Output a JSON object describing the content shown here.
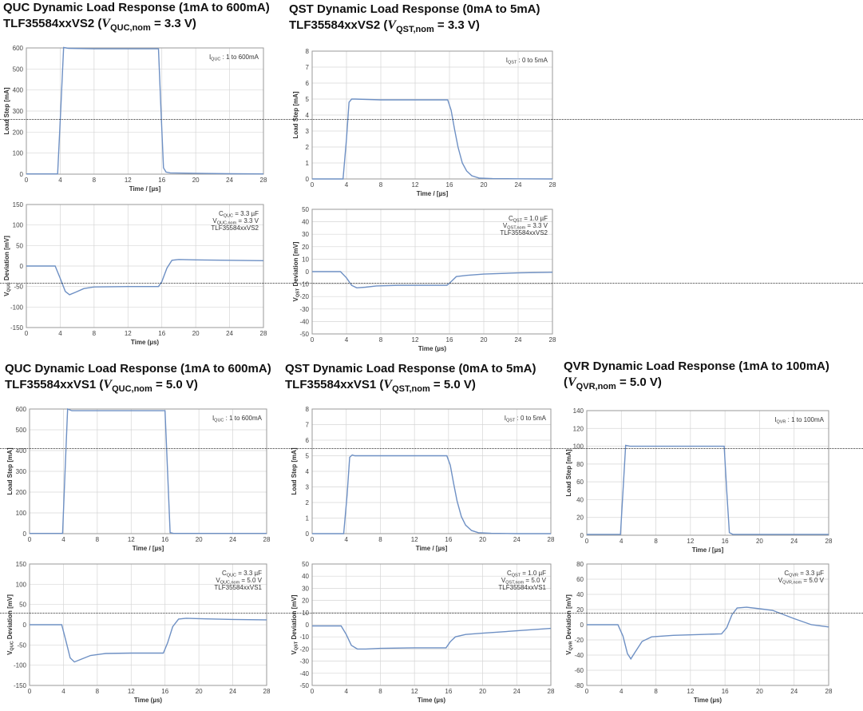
{
  "groups": [
    {
      "id": "quc-vs2",
      "title_line1": "QUC Dynamic Load Response (1mA to 600mA)",
      "title_line2_prefix": "TLF35584xxVS2 (",
      "title_var": "V",
      "title_var_sub": "QUC,nom",
      "title_line2_suffix": " = 3.3 V)"
    },
    {
      "id": "qst-vs2",
      "title_line1": "QST Dynamic Load Response (0mA to 5mA)",
      "title_line2_prefix": "TLF35584xxVS2 (",
      "title_var": "V",
      "title_var_sub": "QST,nom",
      "title_line2_suffix": " = 3.3 V)"
    },
    {
      "id": "quc-vs1",
      "title_line1": "QUC Dynamic Load Response (1mA to 600mA)",
      "title_line2_prefix": "TLF35584xxVS1 (",
      "title_var": "V",
      "title_var_sub": "QUC,nom",
      "title_line2_suffix": " = 5.0 V)"
    },
    {
      "id": "qst-vs1",
      "title_line1": "QST Dynamic Load Response (0mA to 5mA)",
      "title_line2_prefix": "TLF35584xxVS1 (",
      "title_var": "V",
      "title_var_sub": "QST,nom",
      "title_line2_suffix": " = 5.0 V)"
    },
    {
      "id": "qvr",
      "title_line1": "QVR Dynamic Load Response (1mA to 100mA)",
      "title_line2_prefix": "(",
      "title_var": "V",
      "title_var_sub": "QVR,nom",
      "title_line2_suffix": " = 5.0 V)"
    }
  ],
  "chart_data": [
    {
      "id": "quc-vs2-load",
      "type": "line",
      "xlabel": "Time / [µs]",
      "ylabel": "Load Step  [mA]",
      "xlim": [
        0,
        28
      ],
      "ylim": [
        0,
        600
      ],
      "xticks": [
        0,
        4,
        8,
        12,
        16,
        20,
        24,
        28
      ],
      "yticks": [
        0,
        100,
        200,
        300,
        400,
        500,
        600
      ],
      "grid": true,
      "annotation": [
        "I|QUC| : 1 to 600mA"
      ],
      "series": [
        {
          "x": [
            0,
            3.7,
            4.05,
            4.4,
            5,
            8,
            12,
            15.6,
            15.9,
            16.2,
            16.5,
            17,
            20,
            24,
            28
          ],
          "y": [
            1,
            1,
            300,
            602,
            598,
            596,
            596,
            596,
            300,
            30,
            10,
            6,
            4,
            2,
            1
          ]
        }
      ]
    },
    {
      "id": "quc-vs2-dev",
      "type": "line",
      "xlabel": "Time (µs)",
      "ylabel": "V|QUC| Deviation  [mV]",
      "xlim": [
        0,
        28
      ],
      "ylim": [
        -150,
        150
      ],
      "xticks": [
        0,
        4,
        8,
        12,
        16,
        20,
        24,
        28
      ],
      "yticks": [
        -150,
        -100,
        -50,
        0,
        50,
        100,
        150
      ],
      "grid": true,
      "annotation": [
        "C|QUC| = 3.3 µF",
        "V|QUC,nom| = 3.3 V",
        "TLF35584xxVS2"
      ],
      "series": [
        {
          "x": [
            0,
            3.4,
            4,
            4.6,
            5.1,
            5.8,
            6.8,
            8,
            12,
            15.6,
            16,
            16.6,
            17.2,
            18,
            20,
            24,
            28
          ],
          "y": [
            0,
            0,
            -30,
            -62,
            -70,
            -64,
            -55,
            -51,
            -50,
            -50,
            -38,
            -5,
            14,
            16,
            15,
            14,
            13
          ]
        }
      ]
    },
    {
      "id": "qst-vs2-load",
      "type": "line",
      "xlabel": "Time / [µs]",
      "ylabel": "Load Step  [mA]",
      "xlim": [
        0,
        28
      ],
      "ylim": [
        0,
        8
      ],
      "xticks": [
        0,
        4,
        8,
        12,
        16,
        20,
        24,
        28
      ],
      "yticks": [
        0,
        1,
        2,
        3,
        4,
        5,
        6,
        7,
        8
      ],
      "grid": true,
      "annotation": [
        "I|QST| : 0 to 5mA"
      ],
      "series": [
        {
          "x": [
            0,
            3.6,
            4,
            4.3,
            4.6,
            5,
            8,
            12,
            15.8,
            16.2,
            16.6,
            17,
            17.5,
            18,
            18.6,
            19.5,
            21,
            24,
            28
          ],
          "y": [
            0,
            0,
            2.5,
            4.8,
            5,
            5,
            4.95,
            4.95,
            4.95,
            4.3,
            3.1,
            2,
            1,
            0.5,
            0.2,
            0.05,
            0.02,
            0.01,
            0
          ]
        }
      ]
    },
    {
      "id": "qst-vs2-dev",
      "type": "line",
      "xlabel": "Time (µs)",
      "ylabel": "V|QST| Deviation  [mV]",
      "xlim": [
        0,
        28
      ],
      "ylim": [
        -50,
        50
      ],
      "xticks": [
        0,
        4,
        8,
        12,
        16,
        20,
        24,
        28
      ],
      "yticks": [
        -50,
        -40,
        -30,
        -20,
        -10,
        0,
        10,
        20,
        30,
        40,
        50
      ],
      "grid": true,
      "annotation": [
        "C|QST| = 1.0 µF",
        "V|QST,nom| = 3.3 V",
        "TLF35584xxVS2"
      ],
      "series": [
        {
          "x": [
            0,
            3.3,
            4,
            4.6,
            5.2,
            6.2,
            7.5,
            10,
            13,
            15.7,
            16.2,
            16.8,
            18,
            20,
            24,
            28
          ],
          "y": [
            0,
            0,
            -5,
            -11,
            -13,
            -12.5,
            -11.5,
            -11,
            -11,
            -11,
            -8,
            -4,
            -3,
            -2,
            -1,
            -0.5
          ]
        }
      ]
    },
    {
      "id": "quc-vs1-load",
      "type": "line",
      "xlabel": "Time / [µs]",
      "ylabel": "Load Step  [mA]",
      "xlim": [
        0,
        28
      ],
      "ylim": [
        0,
        600
      ],
      "xticks": [
        0,
        4,
        8,
        12,
        16,
        20,
        24,
        28
      ],
      "yticks": [
        0,
        100,
        200,
        300,
        400,
        500,
        600
      ],
      "grid": true,
      "annotation": [
        "I|QUC| : 1 to 600mA"
      ],
      "series": [
        {
          "x": [
            0,
            3.9,
            4.2,
            4.5,
            5,
            8,
            12,
            16,
            16.3,
            16.6,
            17,
            20,
            24,
            28
          ],
          "y": [
            1,
            1,
            300,
            600,
            592,
            592,
            592,
            592,
            300,
            5,
            1,
            1,
            1,
            1
          ]
        }
      ]
    },
    {
      "id": "quc-vs1-dev",
      "type": "line",
      "xlabel": "Time (µs)",
      "ylabel": "V|QUC| Deviation  [mV]",
      "xlim": [
        0,
        28
      ],
      "ylim": [
        -150,
        150
      ],
      "xticks": [
        0,
        4,
        8,
        12,
        16,
        20,
        24,
        28
      ],
      "yticks": [
        -150,
        -100,
        -50,
        0,
        50,
        100,
        150
      ],
      "grid": true,
      "annotation": [
        "C|QUC| = 3.3 µF",
        "V|QUC,nom| = 5.0 V",
        "TLF35584xxVS1"
      ],
      "series": [
        {
          "x": [
            0,
            3.8,
            4.3,
            4.8,
            5.3,
            6,
            7.2,
            9,
            12,
            15.8,
            16.3,
            16.9,
            17.6,
            18.5,
            20,
            24,
            28
          ],
          "y": [
            0,
            0,
            -40,
            -82,
            -92,
            -86,
            -76,
            -71,
            -70,
            -70,
            -45,
            -5,
            14,
            16,
            15,
            13,
            12
          ]
        }
      ]
    },
    {
      "id": "qst-vs1-load",
      "type": "line",
      "xlabel": "Time / [µs]",
      "ylabel": "Load Step  [mA]",
      "xlim": [
        0,
        28
      ],
      "ylim": [
        0,
        8
      ],
      "xticks": [
        0,
        4,
        8,
        12,
        16,
        20,
        24,
        28
      ],
      "yticks": [
        0,
        1,
        2,
        3,
        4,
        5,
        6,
        7,
        8
      ],
      "grid": true,
      "annotation": [
        "I|QST| : 0 to 5mA"
      ],
      "series": [
        {
          "x": [
            0,
            3.7,
            4.1,
            4.4,
            4.7,
            5,
            8,
            12,
            15.8,
            16.2,
            16.6,
            17,
            17.5,
            18,
            18.7,
            19.5,
            21,
            24,
            28
          ],
          "y": [
            0,
            0,
            2.5,
            4.9,
            5.05,
            5,
            5,
            5,
            5,
            4.4,
            3.2,
            2.1,
            1.1,
            0.55,
            0.2,
            0.06,
            0.02,
            0,
            0
          ]
        }
      ]
    },
    {
      "id": "qst-vs1-dev",
      "type": "line",
      "xlabel": "Time (µs)",
      "ylabel": "V|QST| Deviation  [mV]",
      "xlim": [
        0,
        28
      ],
      "ylim": [
        -50,
        50
      ],
      "xticks": [
        0,
        4,
        8,
        12,
        16,
        20,
        24,
        28
      ],
      "yticks": [
        -50,
        -40,
        -30,
        -20,
        -10,
        0,
        10,
        20,
        30,
        40,
        50
      ],
      "grid": true,
      "annotation": [
        "C|QST| = 1.0 µF",
        "V|QST,nom| = 5.0 V",
        "TLF35584xxVS1"
      ],
      "series": [
        {
          "x": [
            0,
            3.4,
            4,
            4.6,
            5.3,
            6.3,
            8,
            12,
            15.7,
            16.2,
            16.8,
            18,
            20,
            24,
            28
          ],
          "y": [
            -1,
            -1,
            -8,
            -17,
            -20,
            -20,
            -19.5,
            -19,
            -19,
            -14,
            -10,
            -8,
            -7,
            -5,
            -3
          ]
        }
      ]
    },
    {
      "id": "qvr-load",
      "type": "line",
      "xlabel": "Time / [µs]",
      "ylabel": "Load Step  [mA]",
      "xlim": [
        0,
        28
      ],
      "ylim": [
        0,
        140
      ],
      "xticks": [
        0,
        4,
        8,
        12,
        16,
        20,
        24,
        28
      ],
      "yticks": [
        0,
        20,
        40,
        60,
        80,
        100,
        120,
        140
      ],
      "grid": true,
      "annotation": [
        "I|QVR| : 1 to 100mA"
      ],
      "series": [
        {
          "x": [
            0,
            3.9,
            4.2,
            4.5,
            5,
            8,
            12,
            15.9,
            16.2,
            16.5,
            16.9,
            20,
            24,
            28
          ],
          "y": [
            1,
            1,
            50,
            101,
            100,
            100,
            100,
            100,
            50,
            3,
            1,
            1,
            1,
            1
          ]
        }
      ]
    },
    {
      "id": "qvr-dev",
      "type": "line",
      "xlabel": "Time (µs)",
      "ylabel": "V|QVR| Deviation  [mV]",
      "xlim": [
        0,
        28
      ],
      "ylim": [
        -80,
        80
      ],
      "xticks": [
        0,
        4,
        8,
        12,
        16,
        20,
        24,
        28
      ],
      "yticks": [
        -80,
        -60,
        -40,
        -20,
        0,
        20,
        40,
        60,
        80
      ],
      "grid": true,
      "annotation": [
        "C|QVR| = 3.3 µF",
        "V|QVR,nom| = 5.0 V"
      ],
      "series": [
        {
          "x": [
            0,
            3.6,
            4.2,
            4.7,
            5.1,
            5.6,
            6.4,
            7.5,
            10,
            13,
            15.6,
            16.2,
            16.8,
            17.4,
            18.5,
            20,
            21.5,
            24,
            26,
            28
          ],
          "y": [
            0,
            0,
            -15,
            -38,
            -45,
            -36,
            -22,
            -16,
            -14,
            -13,
            -12,
            -4,
            13,
            22,
            23,
            21,
            19,
            8,
            0,
            -3
          ]
        }
      ]
    }
  ]
}
